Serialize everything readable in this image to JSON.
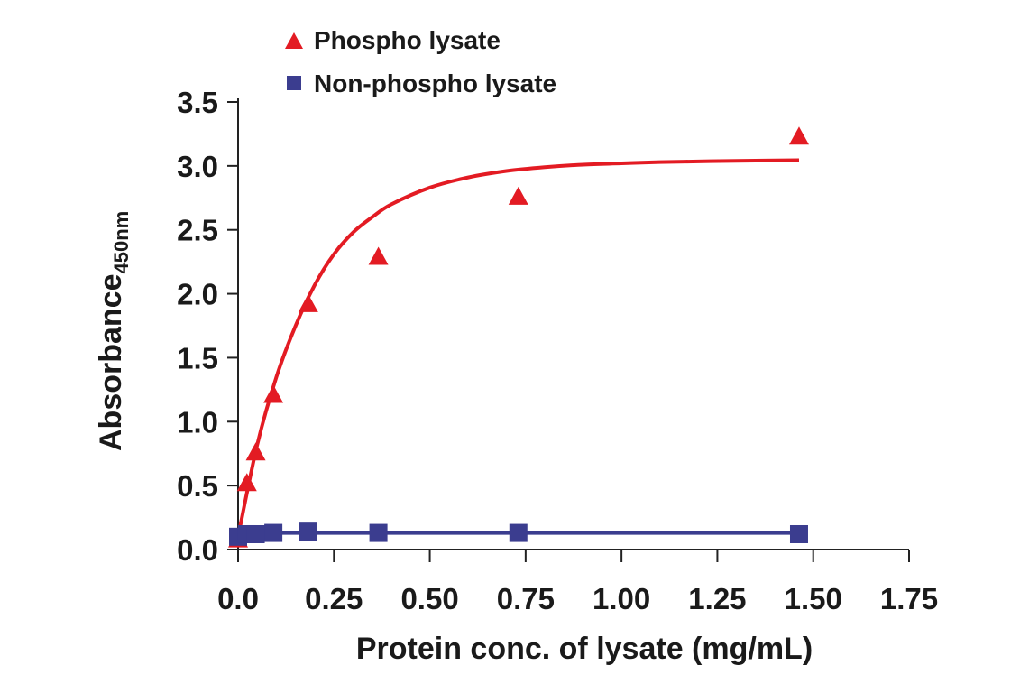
{
  "chart_data": {
    "type": "scatter",
    "title": "",
    "xlabel": "Protein conc. of lysate (mg/mL)",
    "ylabel_main": "Absorbance",
    "ylabel_sub": "450nm",
    "xlim": [
      0,
      1.75
    ],
    "ylim": [
      0,
      3.5
    ],
    "x_ticks": [
      "0.0",
      "0.25",
      "0.50",
      "0.75",
      "1.00",
      "1.25",
      "1.50",
      "1.75"
    ],
    "y_ticks": [
      "0.0",
      "0.5",
      "1.0",
      "1.5",
      "2.0",
      "2.5",
      "3.0",
      "3.5"
    ],
    "x_tick_values": [
      0,
      0.25,
      0.5,
      0.75,
      1.0,
      1.25,
      1.5,
      1.75
    ],
    "y_tick_values": [
      0,
      0.5,
      1.0,
      1.5,
      2.0,
      2.5,
      3.0,
      3.5
    ],
    "grid": false,
    "legend_position": "top-left",
    "series": [
      {
        "name": "Phospho lysate",
        "marker": "triangle",
        "color": "#e31b23",
        "x": [
          0.0,
          0.023,
          0.046,
          0.092,
          0.183,
          0.366,
          0.731,
          1.463
        ],
        "y": [
          0.08,
          0.52,
          0.76,
          1.21,
          1.92,
          2.29,
          2.76,
          3.23
        ],
        "fit": {
          "type": "saturation",
          "x": [
            0.0,
            0.05,
            0.1,
            0.15,
            0.2,
            0.25,
            0.3,
            0.35,
            0.4,
            0.5,
            0.6,
            0.7,
            0.8,
            0.9,
            1.0,
            1.1,
            1.2,
            1.3,
            1.463
          ],
          "y": [
            0.1,
            0.82,
            1.35,
            1.75,
            2.07,
            2.31,
            2.48,
            2.6,
            2.7,
            2.83,
            2.91,
            2.96,
            2.99,
            3.01,
            3.02,
            3.03,
            3.035,
            3.04,
            3.045
          ]
        }
      },
      {
        "name": "Non-phospho lysate",
        "marker": "square",
        "color": "#3b3d8f",
        "x": [
          0.0,
          0.023,
          0.046,
          0.092,
          0.183,
          0.366,
          0.731,
          1.463
        ],
        "y": [
          0.1,
          0.12,
          0.12,
          0.13,
          0.14,
          0.13,
          0.13,
          0.12
        ],
        "fit": {
          "type": "linear",
          "x": [
            0.0,
            1.463
          ],
          "y": [
            0.13,
            0.13
          ]
        }
      }
    ]
  }
}
